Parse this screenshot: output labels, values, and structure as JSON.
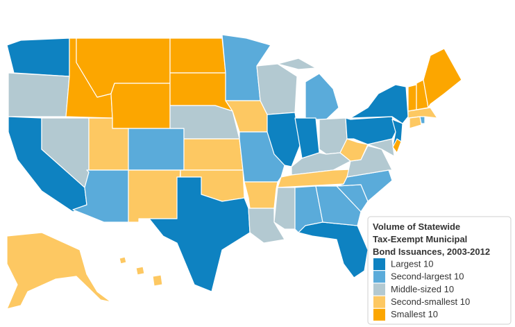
{
  "legend": {
    "title_lines": [
      "Volume of Statewide",
      "Tax-Exempt Municipal",
      "Bond Issuances, 2003-2012"
    ],
    "items": [
      {
        "label": "Largest 10",
        "color": "#0e82c1"
      },
      {
        "label": "Second-largest 10",
        "color": "#5aabda"
      },
      {
        "label": "Middle-sized 10",
        "color": "#b3c9d1"
      },
      {
        "label": "Second-smallest 10",
        "color": "#fdc862"
      },
      {
        "label": "Smallest 10",
        "color": "#fca600"
      }
    ]
  },
  "region_tiers": [
    0,
    2,
    0,
    2,
    4,
    4,
    4,
    3,
    1,
    1,
    3,
    4,
    4,
    2,
    3,
    3,
    0,
    1,
    3,
    1,
    3,
    2,
    2,
    0,
    1,
    0,
    2,
    2,
    3,
    2,
    1,
    0,
    1,
    1,
    1,
    2,
    3,
    0,
    0,
    0,
    2,
    3,
    3,
    1,
    4,
    4,
    4,
    3,
    3,
    3,
    3,
    4,
    2
  ]
}
